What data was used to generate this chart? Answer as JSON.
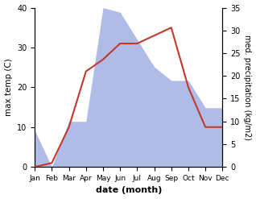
{
  "months": [
    "Jan",
    "Feb",
    "Mar",
    "Apr",
    "May",
    "Jun",
    "Jul",
    "Aug",
    "Sep",
    "Oct",
    "Nov",
    "Dec"
  ],
  "temperature": [
    0,
    1,
    10,
    24,
    27,
    31,
    31,
    33,
    35,
    20,
    10,
    10
  ],
  "precipitation": [
    8,
    0,
    10,
    10,
    35,
    34,
    28,
    22,
    19,
    19,
    13,
    13
  ],
  "temp_color": "#c0392b",
  "precip_color": "#b0bce8",
  "ylabel_left": "max temp (C)",
  "ylabel_right": "med. precipitation (kg/m2)",
  "xlabel": "date (month)",
  "temp_ylim": [
    0,
    40
  ],
  "precip_ylim": [
    0,
    35
  ],
  "temp_yticks": [
    0,
    10,
    20,
    30,
    40
  ],
  "precip_yticks": [
    0,
    5,
    10,
    15,
    20,
    25,
    30,
    35
  ],
  "figsize": [
    3.18,
    2.47
  ],
  "dpi": 100
}
